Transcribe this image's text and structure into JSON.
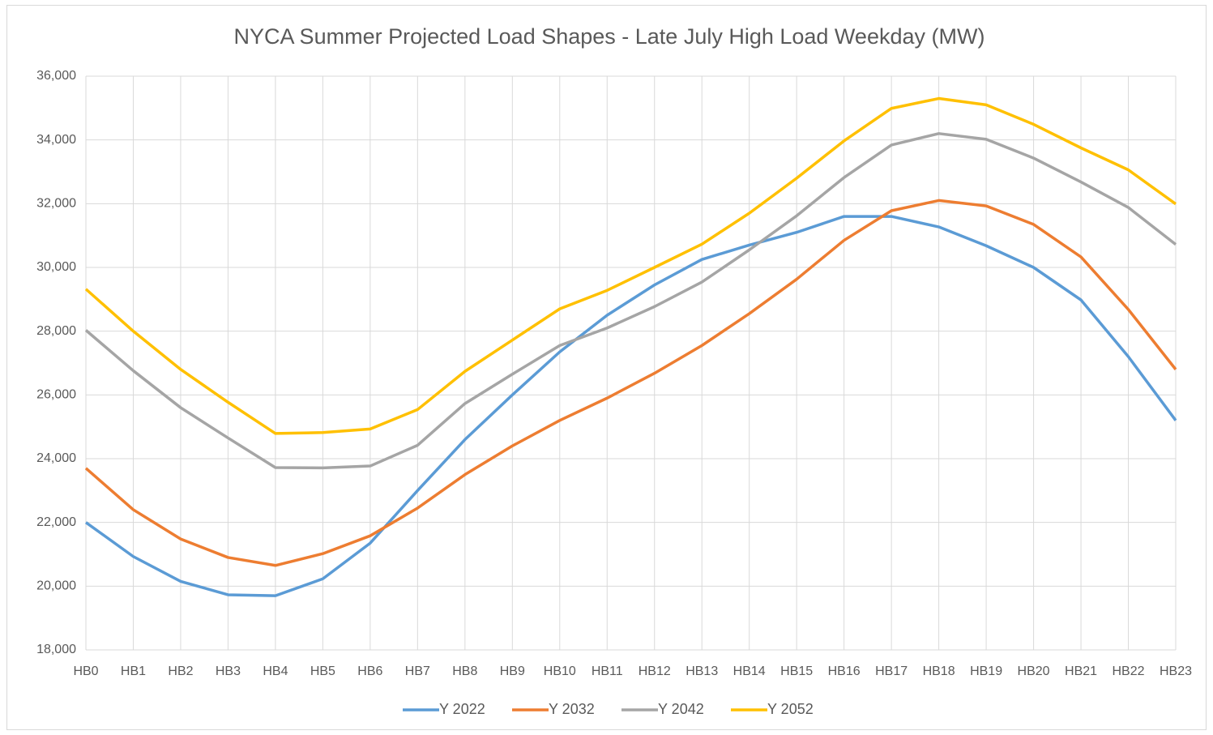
{
  "chart_data": {
    "type": "line",
    "title": "NYCA Summer Projected Load Shapes - Late July High Load Weekday (MW)",
    "categories": [
      "HB0",
      "HB1",
      "HB2",
      "HB3",
      "HB4",
      "HB5",
      "HB6",
      "HB7",
      "HB8",
      "HB9",
      "HB10",
      "HB11",
      "HB12",
      "HB13",
      "HB14",
      "HB15",
      "HB16",
      "HB17",
      "HB18",
      "HB19",
      "HB20",
      "HB21",
      "HB22",
      "HB23"
    ],
    "series": [
      {
        "name": "Y 2022",
        "color": "#5b9bd5",
        "values": [
          22000,
          20930,
          20150,
          19730,
          19700,
          20230,
          21350,
          23000,
          24600,
          26000,
          27350,
          28500,
          29450,
          30250,
          30700,
          31100,
          31600,
          31600,
          31270,
          30680,
          30000,
          28980,
          27200,
          25200
        ]
      },
      {
        "name": "Y 2032",
        "color": "#ed7d31",
        "values": [
          23700,
          22400,
          21480,
          20900,
          20650,
          21020,
          21580,
          22450,
          23500,
          24400,
          25200,
          25900,
          26680,
          27550,
          28550,
          29630,
          30850,
          31780,
          32100,
          31930,
          31350,
          30330,
          28680,
          26800
        ]
      },
      {
        "name": "Y 2042",
        "color": "#a5a5a5",
        "values": [
          28030,
          26760,
          25600,
          24650,
          23720,
          23710,
          23770,
          24420,
          25730,
          26650,
          27550,
          28100,
          28770,
          29540,
          30550,
          31620,
          32820,
          33840,
          34200,
          34020,
          33430,
          32680,
          31880,
          30720
        ]
      },
      {
        "name": "Y 2052",
        "color": "#ffc000",
        "values": [
          29320,
          28000,
          26800,
          25770,
          24790,
          24820,
          24930,
          25540,
          26740,
          27720,
          28700,
          29280,
          30000,
          30730,
          31700,
          32800,
          33970,
          34990,
          35300,
          35100,
          34490,
          33750,
          33060,
          31990
        ]
      }
    ],
    "ylim": [
      18000,
      36000
    ],
    "yticks": [
      {
        "value": 18000,
        "label": "18,000"
      },
      {
        "value": 20000,
        "label": "20,000"
      },
      {
        "value": 22000,
        "label": "22,000"
      },
      {
        "value": 24000,
        "label": "24,000"
      },
      {
        "value": 26000,
        "label": "26,000"
      },
      {
        "value": 28000,
        "label": "28,000"
      },
      {
        "value": 30000,
        "label": "30,000"
      },
      {
        "value": 32000,
        "label": "32,000"
      },
      {
        "value": 34000,
        "label": "34,000"
      },
      {
        "value": 36000,
        "label": "36,000"
      }
    ],
    "grid": true,
    "legend": "bottom"
  }
}
